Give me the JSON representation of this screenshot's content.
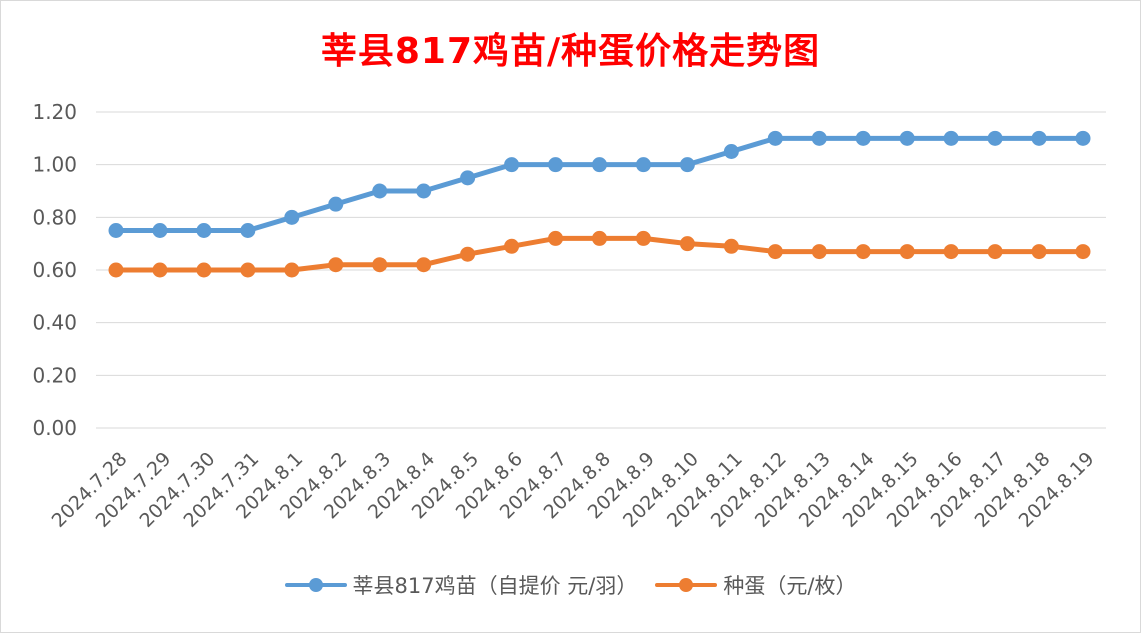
{
  "chart_data": {
    "type": "line",
    "title": "莘县817鸡苗/种蛋价格走势图",
    "categories": [
      "2024.7.28",
      "2024.7.29",
      "2024.7.30",
      "2024.7.31",
      "2024.8.1",
      "2024.8.2",
      "2024.8.3",
      "2024.8.4",
      "2024.8.5",
      "2024.8.6",
      "2024.8.7",
      "2024.8.8",
      "2024.8.9",
      "2024.8.10",
      "2024.8.11",
      "2024.8.12",
      "2024.8.13",
      "2024.8.14",
      "2024.8.15",
      "2024.8.16",
      "2024.8.17",
      "2024.8.18",
      "2024.8.19"
    ],
    "series": [
      {
        "name": "莘县817鸡苗（自提价 元/羽）",
        "color": "#5b9bd5",
        "values": [
          0.75,
          0.75,
          0.75,
          0.75,
          0.8,
          0.85,
          0.9,
          0.9,
          0.95,
          1.0,
          1.0,
          1.0,
          1.0,
          1.0,
          1.05,
          1.1,
          1.1,
          1.1,
          1.1,
          1.1,
          1.1,
          1.1,
          1.1
        ]
      },
      {
        "name": "种蛋（元/枚）",
        "color": "#ed7d31",
        "values": [
          0.6,
          0.6,
          0.6,
          0.6,
          0.6,
          0.62,
          0.62,
          0.62,
          0.66,
          0.69,
          0.72,
          0.72,
          0.72,
          0.7,
          0.69,
          0.67,
          0.67,
          0.67,
          0.67,
          0.67,
          0.67,
          0.67,
          0.67
        ]
      }
    ],
    "y_ticks": [
      "0.00",
      "0.20",
      "0.40",
      "0.60",
      "0.80",
      "1.00",
      "1.20"
    ],
    "ylim": [
      0,
      1.2
    ],
    "grid": true,
    "legend_position": "bottom",
    "title_color": "#ff0000"
  }
}
